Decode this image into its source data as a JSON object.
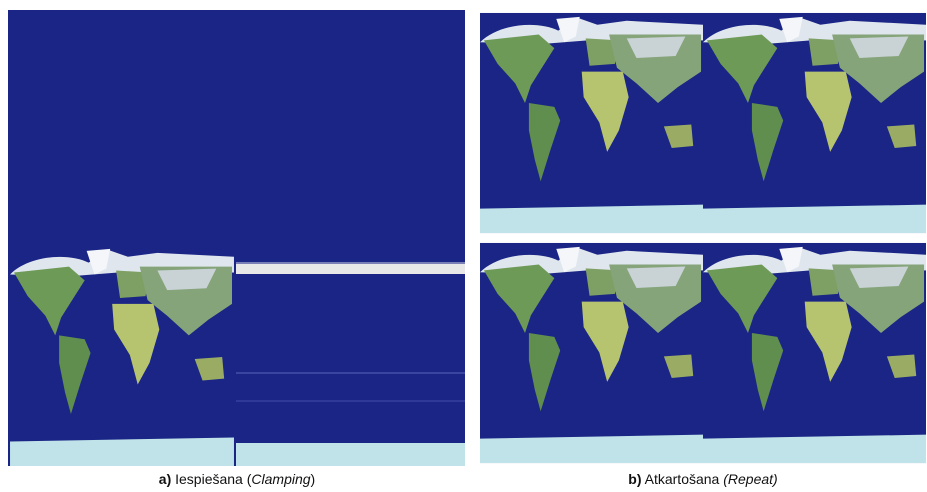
{
  "captions": [
    {
      "label": "a)",
      "text": "Iespiešana (",
      "italic": "Clamping",
      "end": ")"
    },
    {
      "label": "b)",
      "text": "Atkartošana ",
      "italic": "(Repeat)"
    }
  ]
}
